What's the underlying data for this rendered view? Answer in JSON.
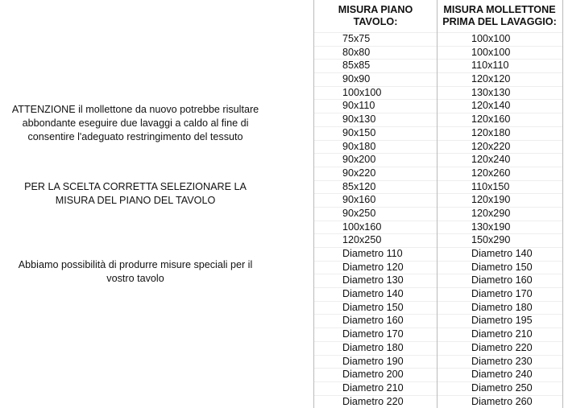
{
  "notes": [
    [
      "ATTENZIONE il mollettone da nuovo potrebbe risultare",
      "abbondante eseguire due lavaggi a caldo al fine di",
      "consentire l'adeguato restringimento del tessuto"
    ],
    [
      "PER LA SCELTA CORRETTA SELEZIONARE LA",
      "MISURA DEL PIANO DEL TAVOLO"
    ],
    [
      "Abbiamo possibilità di produrre misure speciali per il",
      "vostro tavolo"
    ]
  ],
  "table": {
    "headers": [
      [
        "MISURA PIANO",
        "TAVOLO:"
      ],
      [
        "MISURA MOLLETTONE",
        "PRIMA DEL LAVAGGIO:"
      ]
    ],
    "rows": [
      [
        "75x75",
        "100x100"
      ],
      [
        "80x80",
        "100x100"
      ],
      [
        "85x85",
        "110x110"
      ],
      [
        "90x90",
        "120x120"
      ],
      [
        "100x100",
        "130x130"
      ],
      [
        "90x110",
        "120x140"
      ],
      [
        "90x130",
        "120x160"
      ],
      [
        "90x150",
        "120x180"
      ],
      [
        "90x180",
        "120x220"
      ],
      [
        "90x200",
        "120x240"
      ],
      [
        "90x220",
        "120x260"
      ],
      [
        "85x120",
        "110x150"
      ],
      [
        "90x160",
        "120x190"
      ],
      [
        "90x250",
        "120x290"
      ],
      [
        "100x160",
        "130x190"
      ],
      [
        "120x250",
        "150x290"
      ],
      [
        "Diametro 110",
        "Diametro 140"
      ],
      [
        "Diametro 120",
        "Diametro 150"
      ],
      [
        "Diametro 130",
        "Diametro 160"
      ],
      [
        "Diametro 140",
        "Diametro 170"
      ],
      [
        "Diametro 150",
        "Diametro 180"
      ],
      [
        "Diametro 160",
        "Diametro 195"
      ],
      [
        "Diametro 170",
        "Diametro 210"
      ],
      [
        "Diametro 180",
        "Diametro 220"
      ],
      [
        "Diametro 190",
        "Diametro 230"
      ],
      [
        "Diametro 200",
        "Diametro 240"
      ],
      [
        "Diametro 210",
        "Diametro 250"
      ],
      [
        "Diametro 220",
        "Diametro 260"
      ]
    ]
  }
}
